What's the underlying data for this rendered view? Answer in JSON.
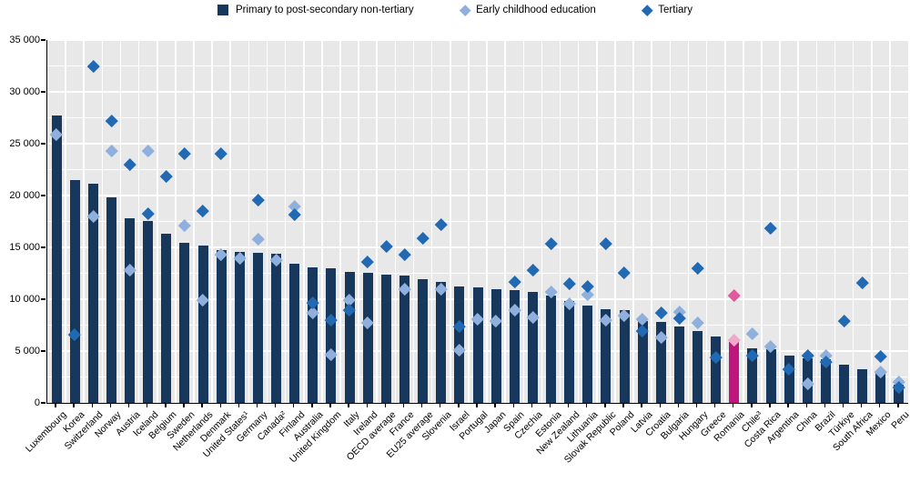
{
  "legend": [
    {
      "label": "Primary to post-secondary non-tertiary",
      "marker": "square",
      "color": "#17375C"
    },
    {
      "label": "Early childhood education",
      "marker": "diamond",
      "color": "#8FB0DC"
    },
    {
      "label": "Tertiary",
      "marker": "diamond",
      "color": "#2169B2"
    }
  ],
  "colors": {
    "bar": "#17375C",
    "ece_point": "#8FB0DC",
    "tertiary_point": "#2169B2",
    "plot_background": "#E8E8E8",
    "gridline": "#FFFFFF",
    "axis": "#000000",
    "highlight_bar": "#C0157E",
    "highlight_tertiary": "#E05A9E",
    "highlight_ece": "#F2A8CA"
  },
  "y_axis": {
    "min": 0,
    "max": 35000,
    "major_step": 5000,
    "minor_step": 2500,
    "tick_labels": [
      "0",
      "5 000",
      "10 000",
      "15 000",
      "20 000",
      "25 000",
      "30 000",
      "35 000"
    ]
  },
  "chart_data": {
    "type": "bar",
    "title": "",
    "xlabel": "",
    "ylabel": "",
    "ylim": [
      0,
      35000
    ],
    "grid": true,
    "legend_position": "top",
    "highlight": {
      "category": "Romania",
      "bar_color": "#C0157E",
      "tertiary_color": "#E05A9E",
      "ece_color": "#F2A8CA"
    },
    "categories": [
      "Luxembourg",
      "Korea",
      "Switzerland",
      "Norway",
      "Austria",
      "Iceland",
      "Belgium",
      "Sweden",
      "Netherlands",
      "Denmark",
      "United States¹",
      "Germany",
      "Canada²",
      "Finland",
      "Australia",
      "United Kingdom",
      "Italy",
      "Ireland",
      "OECD average",
      "France",
      "EU25 average",
      "Slovenia",
      "Israel",
      "Portugal",
      "Japan",
      "Spain",
      "Czechia",
      "Estonia",
      "New Zealand",
      "Lithuania",
      "Slovak Republic",
      "Poland",
      "Latvia",
      "Croatia",
      "Bulgaria",
      "Hungary",
      "Greece",
      "Romania",
      "Chile³",
      "Costa Rica",
      "Argentina",
      "China",
      "Brazil",
      "Türkiye",
      "South Africa",
      "Mexico",
      "Peru"
    ],
    "series": [
      {
        "name": "Primary to post-secondary non-tertiary",
        "type": "bar",
        "values": [
          27700,
          21500,
          21100,
          19800,
          17800,
          17550,
          16300,
          15450,
          15150,
          14700,
          14550,
          14450,
          14350,
          13400,
          13100,
          13000,
          12650,
          12550,
          12400,
          12300,
          11900,
          11650,
          11200,
          11100,
          11000,
          10900,
          10700,
          10350,
          9800,
          9400,
          9050,
          8950,
          7900,
          7800,
          7400,
          6950,
          6400,
          5900,
          5300,
          5200,
          4600,
          4300,
          4200,
          3700,
          3250,
          2900,
          1750
        ]
      },
      {
        "name": "Early childhood education",
        "type": "scatter",
        "values": [
          25900,
          null,
          18000,
          24300,
          12800,
          24300,
          null,
          17100,
          9900,
          14300,
          14000,
          15800,
          13800,
          19000,
          8700,
          4700,
          9900,
          7700,
          null,
          11000,
          null,
          11000,
          5100,
          8100,
          7900,
          8950,
          8300,
          10700,
          9550,
          10500,
          8000,
          8400,
          8050,
          6300,
          8800,
          7700,
          null,
          6100,
          6700,
          5450,
          null,
          1900,
          4550,
          null,
          null,
          3000,
          2000
        ]
      },
      {
        "name": "Tertiary",
        "type": "scatter",
        "values": [
          null,
          6600,
          32500,
          27250,
          23000,
          18250,
          21900,
          24050,
          18500,
          24050,
          null,
          19550,
          null,
          18150,
          9700,
          8000,
          8950,
          13600,
          15100,
          14300,
          15900,
          17200,
          7400,
          null,
          null,
          11700,
          12800,
          15350,
          11500,
          11250,
          15400,
          12550,
          6950,
          8700,
          8150,
          13000,
          4400,
          10400,
          4550,
          16900,
          3300,
          4550,
          3950,
          7900,
          11600,
          4500,
          1500
        ]
      }
    ]
  }
}
